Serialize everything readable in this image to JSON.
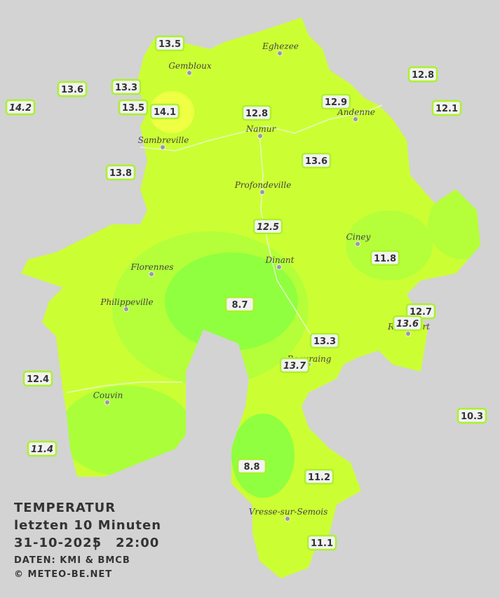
{
  "title": {
    "line1": "TEMPERATUR",
    "line2": "letzten 10 Minuten",
    "date": "31-10-2025",
    "separator": "|",
    "time": "22:00",
    "source": "DATEN: KMI & BMCB",
    "copyright": "© METEO-BE.NET"
  },
  "cities": [
    "Eghezee",
    "Gembloux",
    "Andenne",
    "Namur",
    "Sambreville",
    "Profondeville",
    "Ciney",
    "Dinant",
    "Florennes",
    "Philippeville",
    "Rochefort",
    "Beauraing",
    "Couvin",
    "Vresse-sur-Semois"
  ],
  "stations": [
    {
      "value": 13.5,
      "italic": false
    },
    {
      "value": 13.6,
      "italic": false
    },
    {
      "value": 13.3,
      "italic": false
    },
    {
      "value": 14.2,
      "italic": true
    },
    {
      "value": 13.5,
      "italic": false
    },
    {
      "value": 14.1,
      "italic": false
    },
    {
      "value": 12.8,
      "italic": false
    },
    {
      "value": 12.9,
      "italic": false
    },
    {
      "value": 12.8,
      "italic": false
    },
    {
      "value": 12.1,
      "italic": false
    },
    {
      "value": 13.8,
      "italic": false
    },
    {
      "value": 13.6,
      "italic": false
    },
    {
      "value": 12.5,
      "italic": true
    },
    {
      "value": 11.8,
      "italic": false
    },
    {
      "value": 8.7,
      "italic": false
    },
    {
      "value": 12.7,
      "italic": false
    },
    {
      "value": 13.6,
      "italic": true
    },
    {
      "value": 13.3,
      "italic": false
    },
    {
      "value": 13.7,
      "italic": true
    },
    {
      "value": 12.4,
      "italic": false
    },
    {
      "value": 10.3,
      "italic": false
    },
    {
      "value": 11.4,
      "italic": true
    },
    {
      "value": 8.8,
      "italic": false
    },
    {
      "value": 11.2,
      "italic": false
    },
    {
      "value": 11.1,
      "italic": false
    }
  ]
}
